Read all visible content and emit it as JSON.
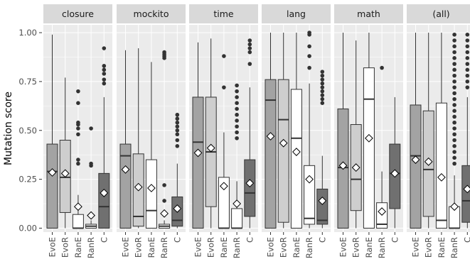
{
  "chart_data": {
    "type": "box",
    "ylabel": "Mutation score",
    "ylim": [
      -0.02,
      1.04
    ],
    "yticks": [
      0.0,
      0.25,
      0.5,
      0.75,
      1.0
    ],
    "ytick_labels": [
      "0.00",
      "0.25",
      "0.50",
      "0.75",
      "1.00"
    ],
    "categories": [
      "EvoE",
      "EvoR",
      "RanE",
      "RanR",
      "C"
    ],
    "box_colors": [
      "#a3a3a3",
      "#cecece",
      "#ffffff",
      "#ffffff",
      "#707070"
    ],
    "panel_bg": "#ebebeb",
    "strip_bg": "#d9d9d9",
    "grid_color": "#ffffff",
    "panels": [
      {
        "title": "closure",
        "boxes": [
          {
            "min": 0.0,
            "q1": 0.0,
            "median": 0.29,
            "q3": 0.43,
            "max": 0.99,
            "mean": 0.285,
            "outliers": []
          },
          {
            "min": 0.0,
            "q1": 0.08,
            "median": 0.26,
            "q3": 0.45,
            "max": 0.77,
            "mean": 0.28,
            "outliers": []
          },
          {
            "min": 0.0,
            "q1": 0.0,
            "median": 0.0,
            "q3": 0.07,
            "max": 0.17,
            "mean": 0.11,
            "outliers": [
              0.35,
              0.33,
              0.48,
              0.51,
              0.53,
              0.54,
              0.64,
              0.7
            ]
          },
          {
            "min": 0.0,
            "q1": 0.0,
            "median": 0.01,
            "q3": 0.02,
            "max": 0.04,
            "mean": 0.065,
            "outliers": [
              0.32,
              0.33,
              0.51
            ]
          },
          {
            "min": 0.0,
            "q1": 0.0,
            "median": 0.11,
            "q3": 0.28,
            "max": 0.67,
            "mean": 0.18,
            "outliers": [
              0.74,
              0.76,
              0.79,
              0.81,
              0.83,
              0.92
            ]
          }
        ]
      },
      {
        "title": "mockito",
        "boxes": [
          {
            "min": 0.0,
            "q1": 0.0,
            "median": 0.37,
            "q3": 0.43,
            "max": 0.91,
            "mean": 0.3,
            "outliers": []
          },
          {
            "min": 0.0,
            "q1": 0.01,
            "median": 0.06,
            "q3": 0.38,
            "max": 0.92,
            "mean": 0.21,
            "outliers": []
          },
          {
            "min": 0.0,
            "q1": 0.0,
            "median": 0.09,
            "q3": 0.35,
            "max": 0.85,
            "mean": 0.205,
            "outliers": []
          },
          {
            "min": 0.0,
            "q1": 0.0,
            "median": 0.01,
            "q3": 0.02,
            "max": 0.04,
            "mean": 0.075,
            "outliers": [
              0.14,
              0.22,
              0.87,
              0.88,
              0.89,
              0.9
            ]
          },
          {
            "min": 0.0,
            "q1": 0.01,
            "median": 0.04,
            "q3": 0.16,
            "max": 0.33,
            "mean": 0.1,
            "outliers": [
              0.42,
              0.45,
              0.48,
              0.5,
              0.52,
              0.54,
              0.56,
              0.58
            ]
          }
        ]
      },
      {
        "title": "time",
        "boxes": [
          {
            "min": 0.0,
            "q1": 0.0,
            "median": 0.44,
            "q3": 0.67,
            "max": 0.95,
            "mean": 0.385,
            "outliers": []
          },
          {
            "min": 0.0,
            "q1": 0.11,
            "median": 0.39,
            "q3": 0.67,
            "max": 0.97,
            "mean": 0.41,
            "outliers": []
          },
          {
            "min": 0.0,
            "q1": 0.0,
            "median": 0.0,
            "q3": 0.26,
            "max": 0.49,
            "mean": 0.215,
            "outliers": [
              0.72,
              0.88
            ]
          },
          {
            "min": 0.0,
            "q1": 0.0,
            "median": 0.0,
            "q3": 0.1,
            "max": 0.24,
            "mean": 0.125,
            "outliers": [
              0.46,
              0.49,
              0.52,
              0.55,
              0.58,
              0.61,
              0.64,
              0.67,
              0.7,
              0.73
            ]
          },
          {
            "min": 0.0,
            "q1": 0.06,
            "median": 0.18,
            "q3": 0.35,
            "max": 0.72,
            "mean": 0.23,
            "outliers": [
              0.84,
              0.9,
              0.92,
              0.94,
              0.96
            ]
          }
        ]
      },
      {
        "title": "lang",
        "boxes": [
          {
            "min": 0.0,
            "q1": 0.0,
            "median": 0.655,
            "q3": 0.76,
            "max": 1.0,
            "mean": 0.47,
            "outliers": []
          },
          {
            "min": 0.0,
            "q1": 0.03,
            "median": 0.555,
            "q3": 0.76,
            "max": 1.0,
            "mean": 0.435,
            "outliers": []
          },
          {
            "min": 0.0,
            "q1": 0.0,
            "median": 0.46,
            "q3": 0.71,
            "max": 1.0,
            "mean": 0.39,
            "outliers": []
          },
          {
            "min": 0.0,
            "q1": 0.02,
            "median": 0.05,
            "q3": 0.32,
            "max": 0.74,
            "mean": 0.25,
            "outliers": [
              0.82,
              0.88,
              0.93,
              0.99,
              1.0
            ]
          },
          {
            "min": 0.0,
            "q1": 0.02,
            "median": 0.04,
            "q3": 0.2,
            "max": 0.37,
            "mean": 0.14,
            "outliers": [
              0.64,
              0.66,
              0.68,
              0.7,
              0.72,
              0.74,
              0.76,
              0.78,
              0.8
            ]
          }
        ]
      },
      {
        "title": "math",
        "boxes": [
          {
            "min": 0.0,
            "q1": 0.0,
            "median": 0.31,
            "q3": 0.61,
            "max": 1.0,
            "mean": 0.32,
            "outliers": []
          },
          {
            "min": 0.0,
            "q1": 0.09,
            "median": 0.25,
            "q3": 0.53,
            "max": 0.96,
            "mean": 0.31,
            "outliers": []
          },
          {
            "min": 0.0,
            "q1": 0.0,
            "median": 0.66,
            "q3": 0.82,
            "max": 1.0,
            "mean": 0.46,
            "outliers": []
          },
          {
            "min": 0.0,
            "q1": 0.0,
            "median": 0.02,
            "q3": 0.13,
            "max": 0.29,
            "mean": 0.085,
            "outliers": [
              0.82
            ]
          },
          {
            "min": 0.0,
            "q1": 0.1,
            "median": 0.28,
            "q3": 0.43,
            "max": 0.67,
            "mean": 0.28,
            "outliers": []
          }
        ]
      },
      {
        "title": "(all)",
        "boxes": [
          {
            "min": 0.0,
            "q1": 0.0,
            "median": 0.37,
            "q3": 0.63,
            "max": 1.0,
            "mean": 0.35,
            "outliers": []
          },
          {
            "min": 0.0,
            "q1": 0.06,
            "median": 0.3,
            "q3": 0.6,
            "max": 1.0,
            "mean": 0.34,
            "outliers": []
          },
          {
            "min": 0.0,
            "q1": 0.0,
            "median": 0.04,
            "q3": 0.64,
            "max": 1.0,
            "mean": 0.26,
            "outliers": []
          },
          {
            "min": 0.0,
            "q1": 0.0,
            "median": 0.0,
            "q3": 0.11,
            "max": 0.27,
            "mean": 0.11,
            "outliers": [
              0.33,
              0.36,
              0.39,
              0.42,
              0.45,
              0.48,
              0.51,
              0.54,
              0.57,
              0.6,
              0.63,
              0.66,
              0.69,
              0.72,
              0.75,
              0.78,
              0.81,
              0.84,
              0.87,
              0.9,
              0.93,
              0.96,
              0.99
            ]
          },
          {
            "min": 0.0,
            "q1": 0.03,
            "median": 0.14,
            "q3": 0.32,
            "max": 0.67,
            "mean": 0.2,
            "outliers": [
              0.72,
              0.75,
              0.78,
              0.81,
              0.84,
              0.87,
              0.9,
              0.93,
              0.96,
              0.99
            ]
          }
        ]
      }
    ]
  }
}
